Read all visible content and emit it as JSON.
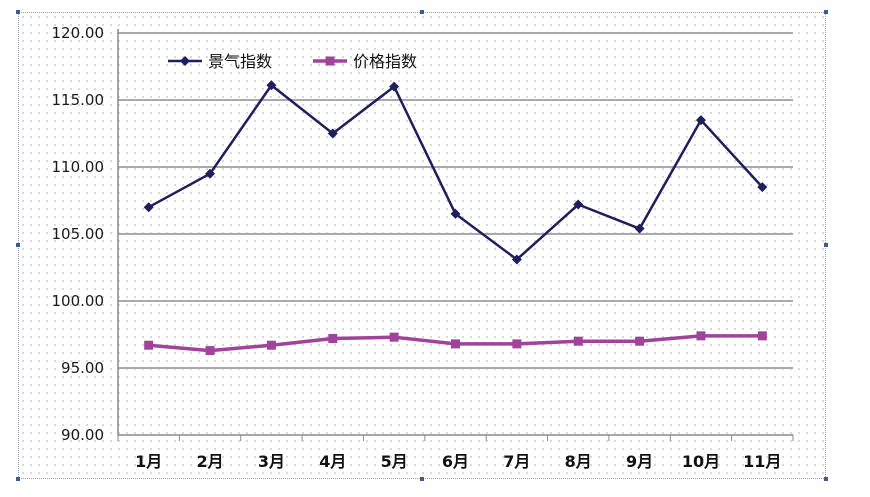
{
  "chart_data": {
    "type": "line",
    "categories": [
      "1月",
      "2月",
      "3月",
      "4月",
      "5月",
      "6月",
      "7月",
      "8月",
      "9月",
      "10月",
      "11月"
    ],
    "y_tick_labels": [
      "120.00",
      "115.00",
      "110.00",
      "105.00",
      "100.00",
      "95.00",
      "90.00"
    ],
    "ylim": [
      90,
      120
    ],
    "series": [
      {
        "name": "景气指数",
        "color": "#1f1f5c",
        "marker": "diamond",
        "values": [
          107.0,
          109.5,
          116.1,
          112.5,
          116.0,
          106.5,
          103.1,
          107.2,
          105.4,
          113.5,
          108.5
        ]
      },
      {
        "name": "价格指数",
        "color": "#a0439a",
        "marker": "square",
        "values": [
          96.7,
          96.3,
          96.7,
          97.2,
          97.3,
          96.8,
          96.8,
          97.0,
          97.0,
          97.4,
          97.4
        ]
      }
    ],
    "legend_position": "top-left",
    "grid": "horizontal"
  }
}
